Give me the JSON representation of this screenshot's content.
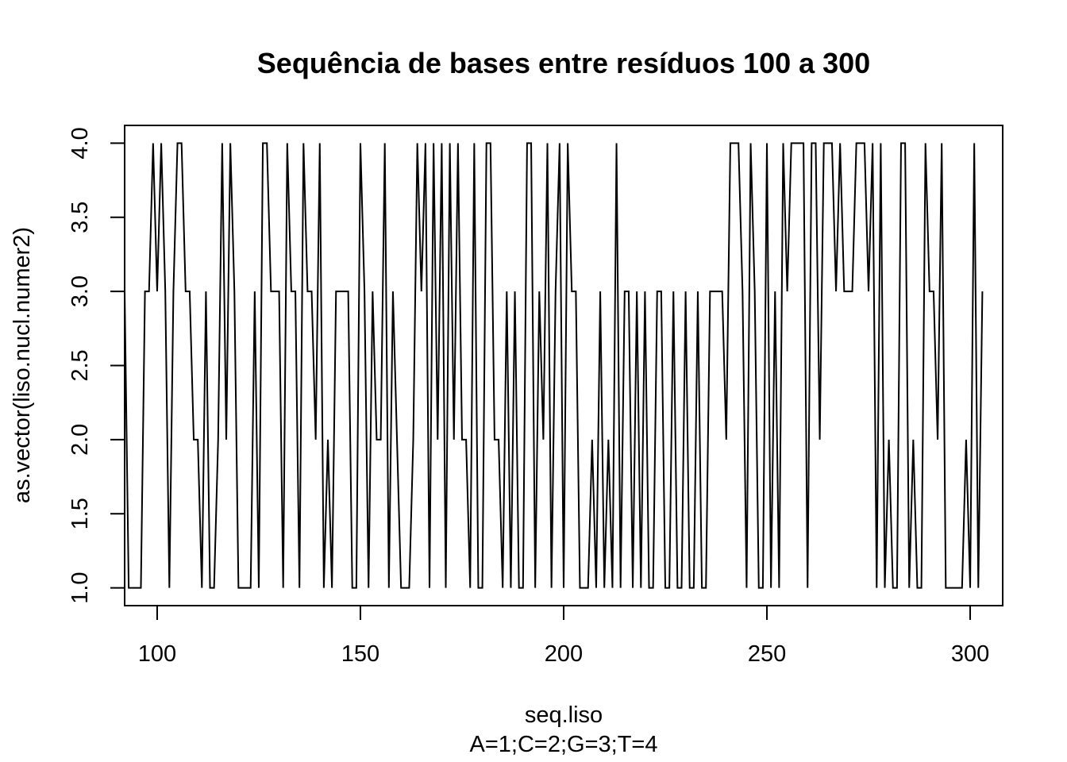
{
  "chart_data": {
    "type": "line",
    "title": "Sequência de bases entre  resíduos 100 a 300",
    "xlabel": "seq.liso",
    "xsublabel": "A=1;C=2;G=3;T=4",
    "ylabel": "as.vector(liso.nucl.numer2)",
    "xlim": [
      92,
      308
    ],
    "ylim": [
      0.88,
      4.12
    ],
    "x_ticks": [
      100,
      150,
      200,
      250,
      300
    ],
    "x_tick_labels": [
      "100",
      "150",
      "200",
      "250",
      "300"
    ],
    "y_ticks": [
      1.0,
      1.5,
      2.0,
      2.5,
      3.0,
      3.5,
      4.0
    ],
    "y_tick_labels": [
      "1.0",
      "1.5",
      "2.0",
      "2.5",
      "3.0",
      "3.5",
      "4.0"
    ],
    "grid": false,
    "legend": "none",
    "line_color": "#000000",
    "series": [
      {
        "x_start": 92,
        "values": [
          3,
          1,
          1,
          1,
          1,
          3,
          3,
          4,
          3,
          4,
          3,
          1,
          3,
          4,
          4,
          3,
          3,
          2,
          2,
          1,
          3,
          1,
          1,
          2,
          4,
          2,
          4,
          3,
          1,
          1,
          1,
          1,
          3,
          1,
          4,
          4,
          3,
          3,
          3,
          1,
          4,
          3,
          3,
          1,
          4,
          3,
          3,
          2,
          4,
          1,
          2,
          1,
          3,
          3,
          3,
          3,
          1,
          1,
          4,
          3,
          1,
          3,
          2,
          2,
          4,
          1,
          3,
          2,
          1,
          1,
          1,
          2,
          4,
          3,
          4,
          1,
          4,
          2,
          4,
          1,
          4,
          2,
          4,
          2,
          2,
          1,
          4,
          1,
          1,
          4,
          4,
          2,
          2,
          1,
          3,
          1,
          3,
          1,
          1,
          4,
          4,
          1,
          3,
          2,
          4,
          1,
          3,
          4,
          1,
          4,
          3,
          3,
          1,
          1,
          1,
          2,
          1,
          3,
          1,
          2,
          1,
          4,
          1,
          3,
          3,
          1,
          3,
          1,
          3,
          1,
          1,
          3,
          3,
          1,
          1,
          3,
          1,
          1,
          3,
          1,
          1,
          3,
          1,
          1,
          3,
          3,
          3,
          3,
          2,
          4,
          4,
          4,
          3,
          1,
          4,
          3,
          1,
          1,
          4,
          1,
          3,
          1,
          4,
          3,
          4,
          4,
          4,
          4,
          1,
          4,
          4,
          2,
          4,
          4,
          4,
          3,
          4,
          3,
          3,
          3,
          4,
          4,
          4,
          3,
          4,
          1,
          4,
          1,
          2,
          1,
          1,
          4,
          4,
          1,
          2,
          1,
          1,
          4,
          3,
          3,
          2,
          4,
          1,
          1,
          1,
          1,
          1,
          2,
          1,
          4,
          1,
          3
        ]
      }
    ]
  }
}
